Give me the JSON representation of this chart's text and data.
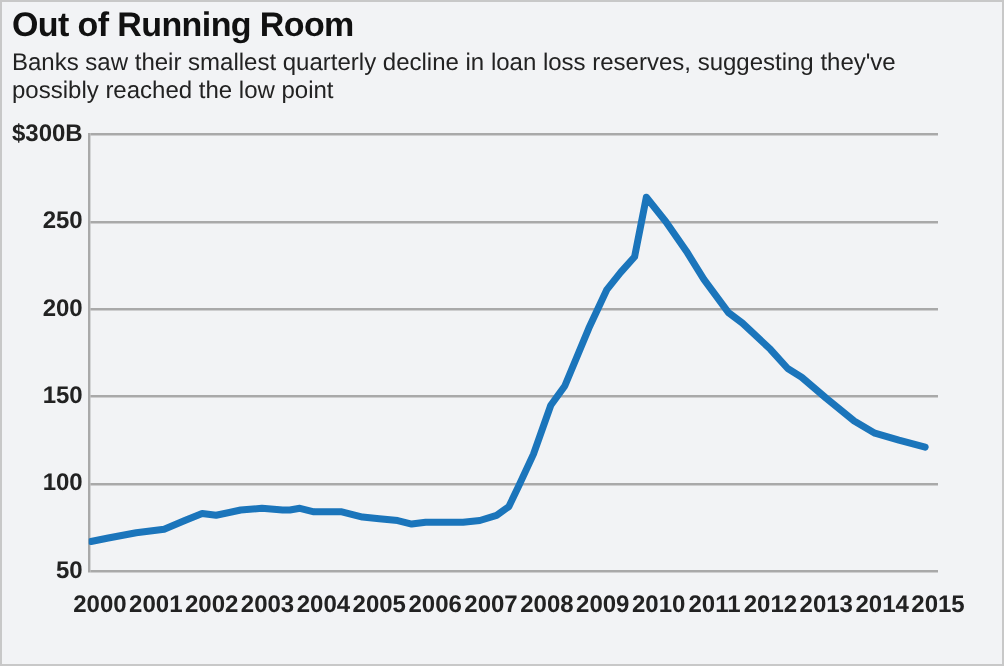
{
  "chart_data": {
    "type": "line",
    "title": "Out of Running Room",
    "subtitle": "Banks saw their smallest quarterly decline in loan loss reserves, suggesting they've possibly reached the low point",
    "x": [
      1999.84,
      2000.15,
      2000.65,
      2001.15,
      2001.52,
      2001.83,
      2002.08,
      2002.52,
      2002.9,
      2003.27,
      2003.4,
      2003.58,
      2003.83,
      2004.33,
      2004.7,
      2005.0,
      2005.33,
      2005.58,
      2005.83,
      2006.5,
      2006.8,
      2007.1,
      2007.32,
      2007.5,
      2007.76,
      2008.07,
      2008.32,
      2008.75,
      2009.07,
      2009.32,
      2009.57,
      2009.78,
      2010.13,
      2010.5,
      2010.81,
      2011.25,
      2011.5,
      2012.0,
      2012.31,
      2012.56,
      2013.0,
      2013.5,
      2013.87,
      2014.3,
      2014.77
    ],
    "series": [
      {
        "color": "#1b75bb",
        "values": [
          67,
          69,
          72,
          74,
          79,
          83,
          82,
          85,
          86,
          85,
          85,
          86,
          84,
          84,
          81,
          80,
          79,
          77,
          78,
          78,
          79,
          82,
          87,
          99,
          117,
          145,
          156,
          189,
          211,
          221,
          230,
          264,
          250,
          233,
          217,
          198,
          192,
          177,
          166,
          161,
          149,
          136,
          129,
          125,
          121
        ]
      }
    ],
    "xlim": [
      1999.8,
      2015
    ],
    "xticks": [
      2000,
      2001,
      2002,
      2003,
      2004,
      2005,
      2006,
      2007,
      2008,
      2009,
      2010,
      2011,
      2012,
      2013,
      2014,
      2015
    ],
    "ylim": [
      50,
      300
    ],
    "yticks": [
      50,
      100,
      150,
      200,
      250,
      {
        "value": 300,
        "label": "$300B"
      }
    ],
    "grid": "y",
    "legend": false,
    "marker": "none",
    "line_style": "solid"
  }
}
